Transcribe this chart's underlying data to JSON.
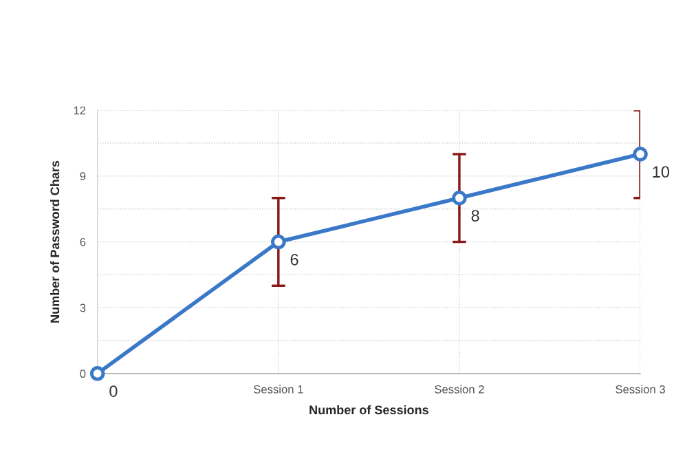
{
  "chart_data": {
    "type": "line",
    "xlabel": "Number of Sessions",
    "ylabel": "Number of Password Chars",
    "categories": [
      null,
      "Session 1",
      "Session 2",
      "Session 3"
    ],
    "values": [
      0,
      6,
      8,
      10
    ],
    "errors": [
      null,
      2,
      2,
      2
    ],
    "color": "#3a78c8",
    "marker": "circle",
    "line_style": "solid",
    "data_labels": true,
    "ylim": [
      0,
      12
    ],
    "yticks": [
      0,
      {
        "value": 1.5,
        "label": null
      },
      3,
      {
        "value": 4.5,
        "label": null
      },
      6,
      {
        "value": 7.5,
        "label": null
      },
      9,
      {
        "value": 10.5,
        "label": null
      },
      12
    ],
    "grid": true
  }
}
